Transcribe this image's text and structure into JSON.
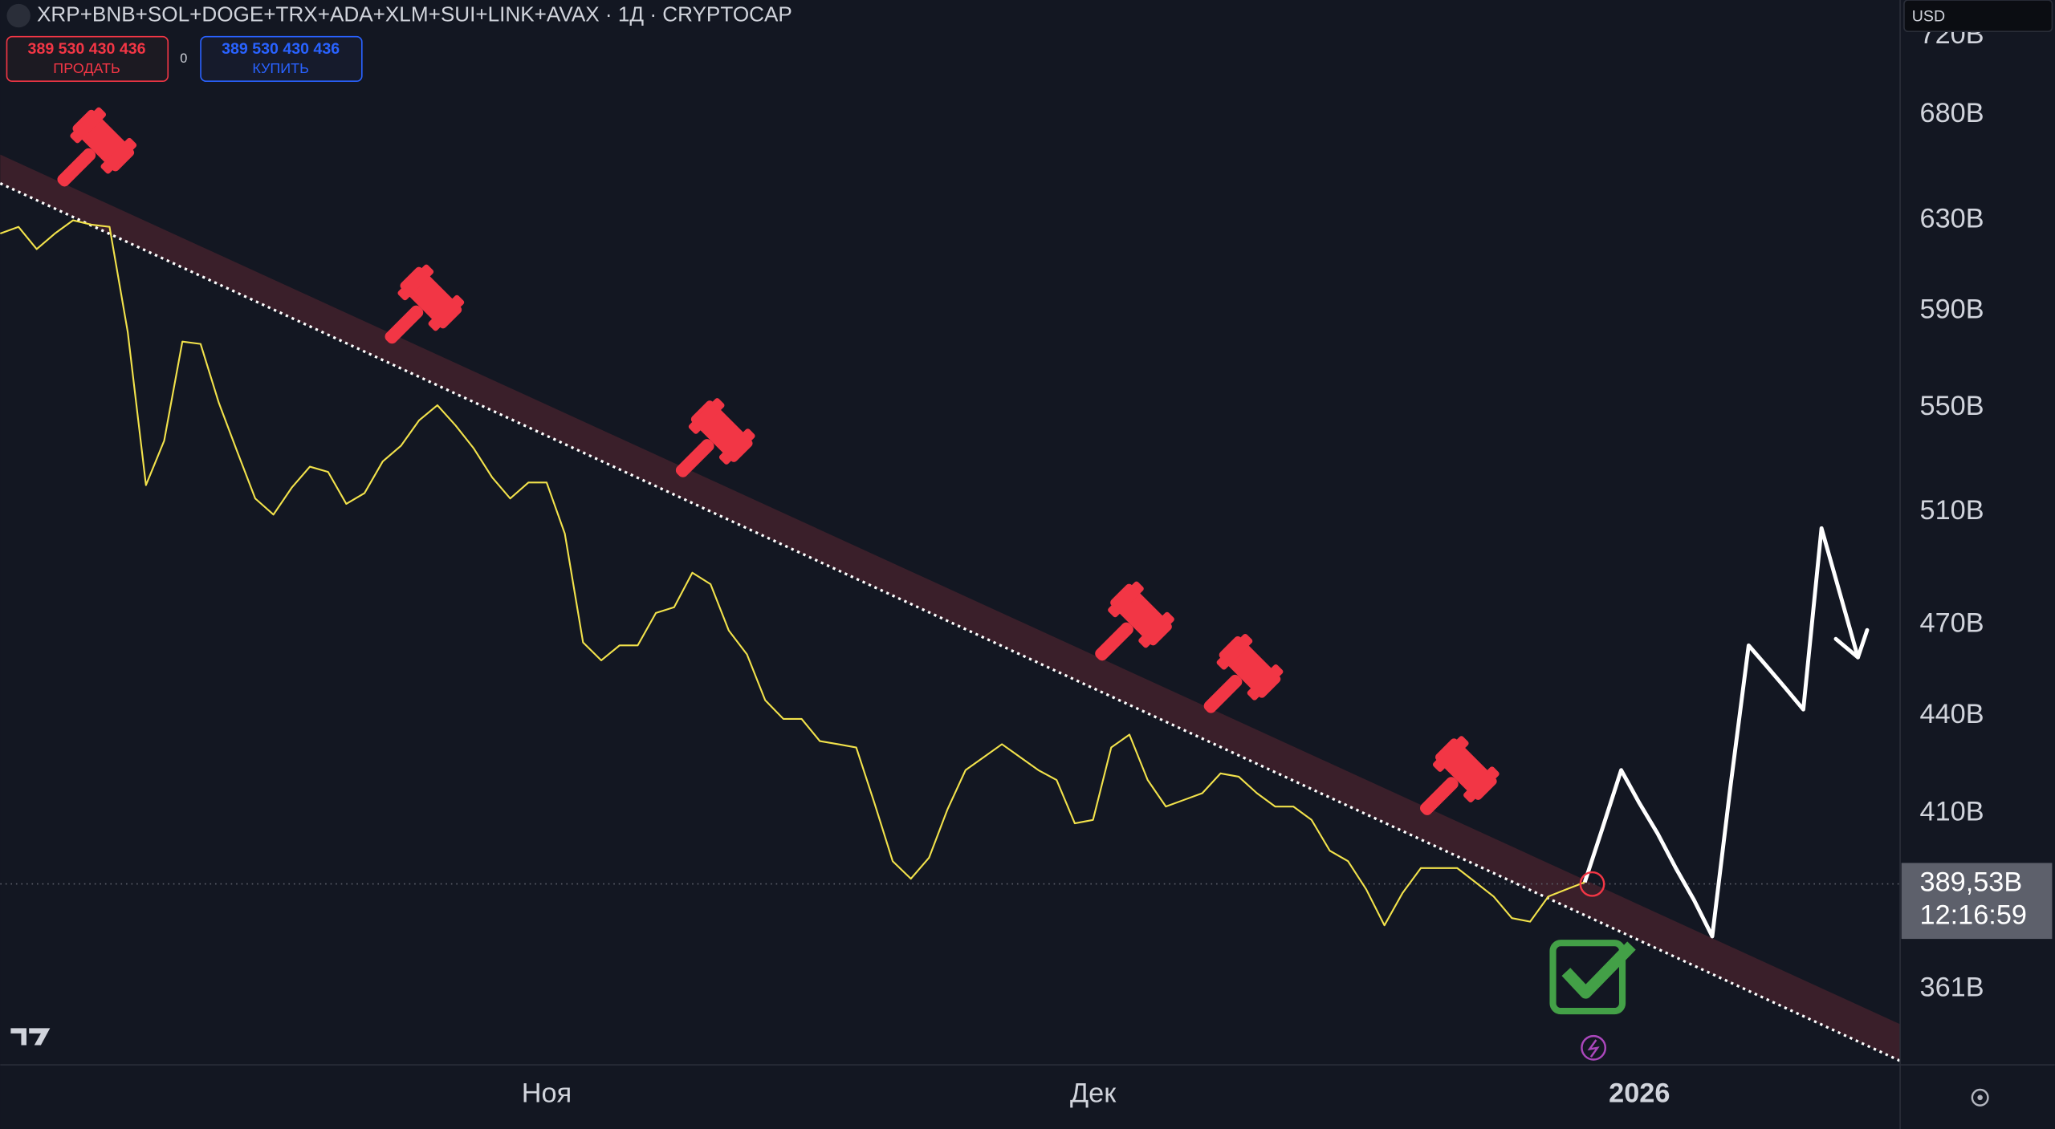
{
  "chart_data": {
    "type": "line",
    "title": "XRP+BNB+SOL+DOGE+TRX+ADA+XLM+SUI+LINK+AVAX · 1Д · CRYPTOCAP",
    "sell_price": "389 530 430 436",
    "sell_label": "ПРОДАТЬ",
    "spread": "0",
    "buy_price": "389 530 430 436",
    "buy_label": "КУПИТЬ",
    "currency": "USD",
    "log_scale": true,
    "grid": false,
    "ylim": [
      342,
      739
    ],
    "yticks": [
      {
        "value": 720,
        "label": "720B"
      },
      {
        "value": 680,
        "label": "680B"
      },
      {
        "value": 630,
        "label": "630B"
      },
      {
        "value": 590,
        "label": "590B"
      },
      {
        "value": 550,
        "label": "550B"
      },
      {
        "value": 510,
        "label": "510B"
      },
      {
        "value": 470,
        "label": "470B"
      },
      {
        "value": 440,
        "label": "440B"
      },
      {
        "value": 410,
        "label": "410B"
      },
      {
        "value": 361,
        "label": "361B"
      }
    ],
    "last_price": {
      "value": 389.53,
      "label": "389,53B"
    },
    "countdown": "12:16:59",
    "categories": [
      null,
      null,
      null,
      null,
      null,
      null,
      null,
      null,
      null,
      null,
      null,
      null,
      null,
      null,
      null,
      null,
      null,
      null,
      null,
      null,
      null,
      null,
      null,
      null,
      null,
      null,
      null,
      null,
      null,
      null,
      "Ноя",
      null,
      null,
      null,
      null,
      null,
      null,
      null,
      null,
      null,
      null,
      null,
      null,
      null,
      null,
      null,
      null,
      null,
      null,
      null,
      null,
      null,
      null,
      null,
      null,
      null,
      null,
      null,
      null,
      null,
      "Дек",
      null,
      null,
      null,
      null,
      null,
      null,
      null,
      null,
      null,
      null,
      null,
      null,
      null,
      null,
      null,
      null,
      null,
      null,
      null,
      null,
      null,
      null,
      null,
      null,
      null,
      null,
      null,
      null,
      null,
      "2026",
      null,
      null,
      null,
      null,
      null,
      null,
      null,
      null,
      null,
      null,
      null,
      null
    ],
    "series": [
      {
        "color": "#f2e24b",
        "values": [
          624,
          627,
          617,
          624,
          630,
          628,
          627,
          581,
          520,
          537,
          577,
          576,
          552,
          533,
          515,
          509,
          519,
          527,
          525,
          513,
          517,
          529,
          535,
          545,
          551,
          543,
          534,
          523,
          515,
          521,
          521,
          502,
          464,
          458,
          463,
          463,
          474,
          476,
          488,
          484,
          468,
          460,
          445,
          439,
          439,
          432,
          431,
          430,
          413,
          396,
          391,
          397,
          411,
          423,
          427,
          431,
          427,
          423,
          420,
          407,
          408,
          430,
          434,
          420,
          412,
          414,
          416,
          422,
          421,
          416,
          412,
          412,
          408,
          399,
          396,
          388,
          378,
          387,
          394,
          394,
          394,
          390,
          386,
          380,
          379,
          386,
          388,
          390,
          null,
          null,
          null,
          null,
          null,
          null,
          null,
          null,
          null,
          null,
          null,
          null,
          null,
          null,
          null
        ]
      },
      {
        "color": "#ffffff",
        "values": [
          null,
          null,
          null,
          null,
          null,
          null,
          null,
          null,
          null,
          null,
          null,
          null,
          null,
          null,
          null,
          null,
          null,
          null,
          null,
          null,
          null,
          null,
          null,
          null,
          null,
          null,
          null,
          null,
          null,
          null,
          null,
          null,
          null,
          null,
          null,
          null,
          null,
          null,
          null,
          null,
          null,
          null,
          null,
          null,
          null,
          null,
          null,
          null,
          null,
          null,
          null,
          null,
          null,
          null,
          null,
          null,
          null,
          null,
          null,
          null,
          null,
          null,
          null,
          null,
          null,
          null,
          null,
          null,
          null,
          null,
          null,
          null,
          null,
          null,
          null,
          null,
          null,
          null,
          null,
          null,
          null,
          null,
          null,
          null,
          null,
          null,
          null,
          390,
          406,
          423,
          413,
          404,
          394,
          385,
          375,
          418,
          463,
          456,
          449,
          442,
          504,
          481,
          459
        ]
      }
    ]
  }
}
